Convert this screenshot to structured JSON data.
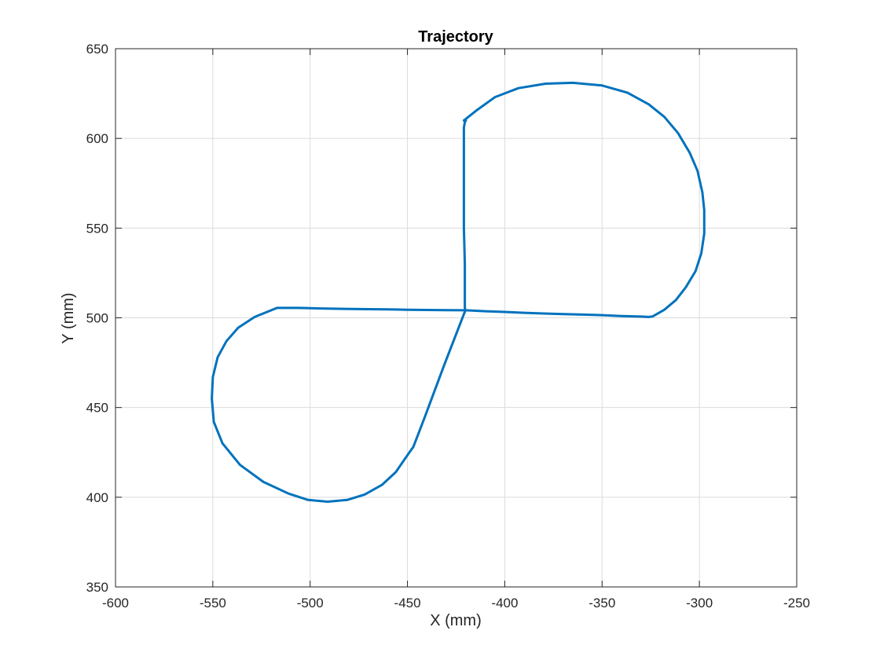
{
  "chart_data": {
    "type": "line",
    "title": "Trajectory",
    "xlabel": "X (mm)",
    "ylabel": "Y (mm)",
    "xlim": [
      -600,
      -250
    ],
    "ylim": [
      350,
      650
    ],
    "xticks": [
      -600,
      -550,
      -500,
      -450,
      -400,
      -350,
      -300,
      -250
    ],
    "yticks": [
      350,
      400,
      450,
      500,
      550,
      600,
      650
    ],
    "xtick_labels": [
      "-600",
      "-550",
      "-500",
      "-450",
      "-400",
      "-350",
      "-300",
      "-250"
    ],
    "ytick_labels": [
      "350",
      "400",
      "450",
      "500",
      "550",
      "600",
      "650"
    ],
    "grid": true,
    "line_color": "#0072BD",
    "series": [
      {
        "x": [
          -420,
          -420.5,
          -421,
          -421,
          -421,
          -421,
          -420.5,
          -420.5,
          -420.5,
          -420.5,
          -420.3,
          -420.3,
          -431,
          -441,
          -447,
          -449,
          -456,
          -463,
          -472,
          -481,
          -491,
          -501,
          -511,
          -524,
          -536,
          -545,
          -549.5,
          -550.5,
          -550,
          -547.5,
          -543,
          -537,
          -528.5,
          -517,
          -506,
          -494,
          -482,
          -470,
          -460,
          -450,
          -440,
          -430,
          -420,
          -410,
          -400,
          -390,
          -380,
          -370,
          -360,
          -350,
          -340,
          -330,
          -326,
          -324,
          -318,
          -312,
          -307,
          -302,
          -299,
          -297.5,
          -297.5,
          -298.5,
          -301,
          -305,
          -311,
          -318,
          -326,
          -337,
          -350,
          -365,
          -379,
          -393,
          -405,
          -414,
          -421
        ],
        "y": [
          610,
          609,
          606,
          590,
          570,
          550,
          530,
          515,
          510,
          506,
          504,
          504,
          474,
          445,
          428,
          425,
          414,
          407,
          401.5,
          398.5,
          397.5,
          398.5,
          402,
          408.5,
          418,
          430,
          442,
          455,
          467,
          478,
          487,
          494.5,
          500.5,
          505.5,
          505.5,
          505.2,
          505,
          504.8,
          504.7,
          504.5,
          504.4,
          504.3,
          504.2,
          503.7,
          503.3,
          502.8,
          502.4,
          502.1,
          501.8,
          501.5,
          501,
          500.7,
          500.5,
          500.8,
          504.5,
          510,
          517,
          526,
          536,
          547,
          560,
          570,
          582,
          592,
          603,
          612,
          619,
          625.5,
          629.5,
          631,
          630.5,
          628,
          623,
          616,
          610
        ]
      }
    ]
  }
}
